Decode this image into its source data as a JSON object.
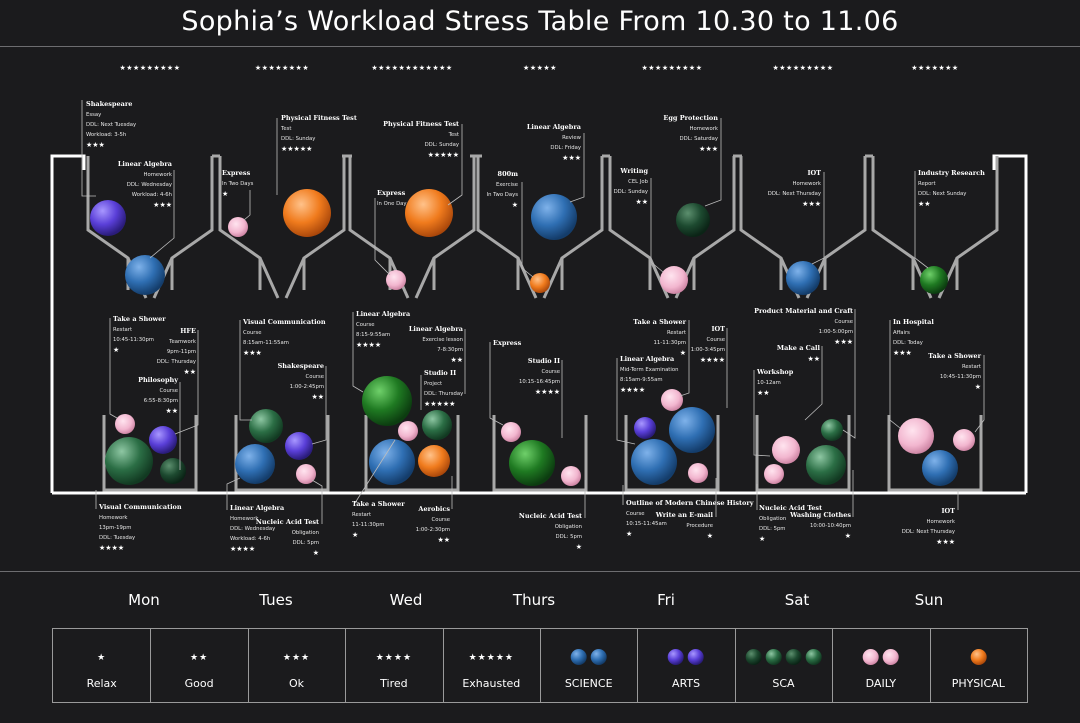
{
  "title": "Sophia’s Workload Stress Table From 10.30 to 11.06",
  "week_ratings": [
    "★★★★★★★★★",
    "★★★★★★★★",
    "★★★★★★★★★★★★",
    "★★★★★",
    "★★★★★★★★★",
    "★★★★★★★★★",
    "★★★★★★★"
  ],
  "days": [
    "Mon",
    "Tues",
    "Wed",
    "Thurs",
    "Fri",
    "Sat",
    "Sun"
  ],
  "category_colors": {
    "SCIENCE": "#2f6fb3",
    "ARTS": "#5a3fd8",
    "SCA": "#2b6e45",
    "DAILY": "#f2b6cf",
    "PHYSICAL": "#f07b1d"
  },
  "tasks": [
    {
      "id": "mon-1",
      "name": "Shakespeare",
      "lines": [
        "Essay",
        "DDL: Next Tuesday",
        "Workload: 3-5h"
      ],
      "stars": "★★★",
      "category": "ARTS"
    },
    {
      "id": "mon-2",
      "name": "Linear Algebra",
      "lines": [
        "Homework",
        "DDL: Wednesday",
        "Workload: 4-6h"
      ],
      "stars": "★★★",
      "category": "SCIENCE"
    },
    {
      "id": "tue-1",
      "name": "Express",
      "lines": [
        "In Two Days"
      ],
      "stars": "★",
      "category": "DAILY"
    },
    {
      "id": "tue-2",
      "name": "Physical Fitness Test",
      "lines": [
        "Test",
        "DDL: Sunday"
      ],
      "stars": "★★★★★",
      "category": "PHYSICAL"
    },
    {
      "id": "wed-1",
      "name": "Express",
      "lines": [
        "In One Day"
      ],
      "stars": "",
      "category": "DAILY"
    },
    {
      "id": "wed-2",
      "name": "Physical Fitness Test",
      "lines": [
        "Test",
        "DDL: Sunday"
      ],
      "stars": "★★★★★",
      "category": "PHYSICAL"
    },
    {
      "id": "thu-1",
      "name": "800m",
      "lines": [
        "Exercise",
        "In Two Days"
      ],
      "stars": "★",
      "category": "PHYSICAL"
    },
    {
      "id": "thu-2",
      "name": "Linear Algebra",
      "lines": [
        "Review",
        "DDL: Friday"
      ],
      "stars": "★★★",
      "category": "SCIENCE"
    },
    {
      "id": "fri-1",
      "name": "Writing",
      "lines": [
        "CEL Job",
        "DDL: Sunday"
      ],
      "stars": "★★",
      "category": "DAILY"
    },
    {
      "id": "fri-2",
      "name": "Egg Protection",
      "lines": [
        "Homework",
        "DDL: Saturday"
      ],
      "stars": "★★★",
      "category": "SCA"
    },
    {
      "id": "sat-1",
      "name": "IOT",
      "lines": [
        "Homework",
        "DDL: Next Thursday"
      ],
      "stars": "★★★",
      "category": "SCIENCE"
    },
    {
      "id": "sun-1",
      "name": "Industry Research",
      "lines": [
        "Report",
        "DDL: Next Sunday"
      ],
      "stars": "★★",
      "category": "SCA"
    },
    {
      "id": "m2-1",
      "name": "Take a Shower",
      "lines": [
        "Restart",
        "10:45-11:30pm"
      ],
      "stars": "★",
      "category": "DAILY"
    },
    {
      "id": "m2-2",
      "name": "HFE",
      "lines": [
        "Teamwork",
        "9pm-11pm",
        "DDL: Thursday"
      ],
      "stars": "★★",
      "category": "ARTS"
    },
    {
      "id": "m2-3",
      "name": "Philosophy",
      "lines": [
        "Course",
        "6:55-8:30pm"
      ],
      "stars": "★★",
      "category": "SCA"
    },
    {
      "id": "m2-4",
      "name": "Visual Communication",
      "lines": [
        "Homework",
        "13pm-19pm",
        "DDL: Tuesday"
      ],
      "stars": "★★★★",
      "category": "SCA"
    },
    {
      "id": "t2-1",
      "name": "Visual Communication",
      "lines": [
        "Course",
        "8:15am-11:55am"
      ],
      "stars": "★★★",
      "category": "SCA"
    },
    {
      "id": "t2-2",
      "name": "Shakespeare",
      "lines": [
        "Course",
        "1:00-2:45pm"
      ],
      "stars": "★★",
      "category": "ARTS"
    },
    {
      "id": "t2-3",
      "name": "Linear Algebra",
      "lines": [
        "Homework",
        "DDL: Wednesday",
        "Workload: 4-6h"
      ],
      "stars": "★★★★",
      "category": "SCIENCE"
    },
    {
      "id": "t2-4",
      "name": "Nucleic Acid Test",
      "lines": [
        "Obligation",
        "DDL: 5pm"
      ],
      "stars": "★",
      "category": "DAILY"
    },
    {
      "id": "w2-1",
      "name": "Linear Algebra",
      "lines": [
        "Course",
        "8:15-9:55am"
      ],
      "stars": "★★★★",
      "category": "SCIENCE"
    },
    {
      "id": "w2-2",
      "name": "Linear Algebra",
      "lines": [
        "Exercise lesson",
        "7-8:30pm"
      ],
      "stars": "★★",
      "category": "SCIENCE"
    },
    {
      "id": "w2-3",
      "name": "Studio II",
      "lines": [
        "Project",
        "DDL: Thursday"
      ],
      "stars": "★★★★★",
      "category": "SCA"
    },
    {
      "id": "w2-4",
      "name": "Take a Shower",
      "lines": [
        "Restart",
        "11-11:30pm"
      ],
      "stars": "★",
      "category": "DAILY"
    },
    {
      "id": "w2-5",
      "name": "Aerobics",
      "lines": [
        "Course",
        "1:00-2:30pm"
      ],
      "stars": "★★",
      "category": "PHYSICAL"
    },
    {
      "id": "h2-1",
      "name": "Express",
      "lines": [],
      "stars": "",
      "category": "DAILY"
    },
    {
      "id": "h2-2",
      "name": "Studio II",
      "lines": [
        "Course",
        "10:15-16:45pm"
      ],
      "stars": "★★★★",
      "category": "SCA"
    },
    {
      "id": "h2-3",
      "name": "Nucleic Acid Test",
      "lines": [
        "Obligation",
        "DDL: 5pm"
      ],
      "stars": "★",
      "category": "DAILY"
    },
    {
      "id": "f2-1",
      "name": "Take a Shower",
      "lines": [
        "Restart",
        "11-11:30pm"
      ],
      "stars": "★",
      "category": "DAILY"
    },
    {
      "id": "f2-2",
      "name": "IOT",
      "lines": [
        "Course",
        "1:00-3:45pm"
      ],
      "stars": "★★★★",
      "category": "SCIENCE"
    },
    {
      "id": "f2-3",
      "name": "Linear Algebra",
      "lines": [
        "Mid-Term Examination",
        "8:15am-9:55am"
      ],
      "stars": "★★★★",
      "category": "SCIENCE"
    },
    {
      "id": "f2-4",
      "name": "Outline of Modern Chinese History",
      "lines": [
        "Course",
        "10:15-11:45am"
      ],
      "stars": "★",
      "category": "ARTS"
    },
    {
      "id": "f2-5",
      "name": "Write an E-mail",
      "lines": [
        "Procedure"
      ],
      "stars": "★",
      "category": "DAILY"
    },
    {
      "id": "s2-1",
      "name": "Product Material and Craft",
      "lines": [
        "Course",
        "1:00-5:00pm"
      ],
      "stars": "★★★",
      "category": "SCA"
    },
    {
      "id": "s2-2",
      "name": "Make a Call",
      "lines": [],
      "stars": "★★",
      "category": "DAILY"
    },
    {
      "id": "s2-3",
      "name": "Workshop",
      "lines": [
        "10-12am"
      ],
      "stars": "★★",
      "category": "SCA"
    },
    {
      "id": "s2-4",
      "name": "Nucleic Acid Test",
      "lines": [
        "Obligation",
        "DDL: 5pm"
      ],
      "stars": "★",
      "category": "DAILY"
    },
    {
      "id": "s2-5",
      "name": "Washing Clothes",
      "lines": [
        "10:00-10:40pm"
      ],
      "stars": "★",
      "category": "DAILY"
    },
    {
      "id": "u2-1",
      "name": "In Hospital",
      "lines": [
        "Affairs",
        "DDL: Today"
      ],
      "stars": "★★★",
      "category": "DAILY"
    },
    {
      "id": "u2-2",
      "name": "Take a Shower",
      "lines": [
        "Restart",
        "10:45-11:30pm"
      ],
      "stars": "★",
      "category": "DAILY"
    },
    {
      "id": "u2-3",
      "name": "IOT",
      "lines": [
        "Homework",
        "DDL: Next Thursday"
      ],
      "stars": "★★★",
      "category": "SCIENCE"
    }
  ],
  "legend": [
    {
      "stars": "★",
      "label": "Relax"
    },
    {
      "stars": "★★",
      "label": "Good"
    },
    {
      "stars": "★★★",
      "label": "Ok"
    },
    {
      "stars": "★★★★",
      "label": "Tired"
    },
    {
      "stars": "★★★★★",
      "label": "Exhausted"
    },
    {
      "category": "SCIENCE",
      "label": "SCIENCE",
      "count": 2
    },
    {
      "category": "ARTS",
      "label": "ARTS",
      "count": 2
    },
    {
      "category": "SCA",
      "label": "SCA",
      "count": 4
    },
    {
      "category": "DAILY",
      "label": "DAILY",
      "count": 2
    },
    {
      "category": "PHYSICAL",
      "label": "PHYSICAL",
      "count": 1
    }
  ]
}
